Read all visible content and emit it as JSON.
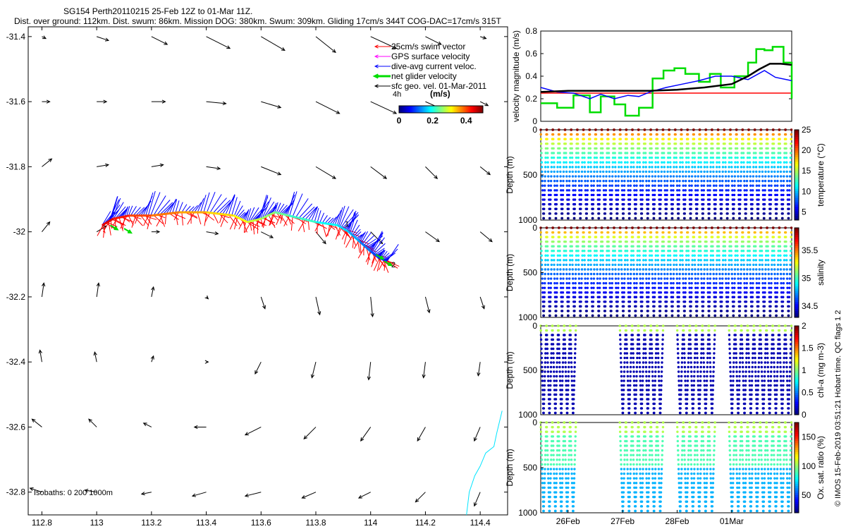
{
  "title": {
    "line1": "SG154 Perth20110215 25-Feb 12Z to 01-Mar 11Z.",
    "line2": "Dist. over ground: 112km. Dist. swum: 86km. Mission DOG: 380km. Swum: 309km. Gliding 17cm/s 344T COG-DAC=17cm/s 315T"
  },
  "credit": "© IMOS 15-Feb-2019 03:51:21 Hobart time. QC flags 1  2",
  "colors": {
    "swim": "#ff0000",
    "gps": "#ff00ff",
    "dac": "#0000ff",
    "net": "#00dd00",
    "sfc": "#000000",
    "coast": "#00e5ff",
    "cumulative": "#000000"
  },
  "chart_data": [
    {
      "type": "scatter",
      "name": "track-map",
      "xlim": [
        112.75,
        114.5
      ],
      "ylim": [
        -32.87,
        -31.37
      ],
      "x_ticks": [
        112.8,
        113,
        113.2,
        113.4,
        113.6,
        113.8,
        114,
        114.2,
        114.4
      ],
      "x_tick_labels": [
        "112.8",
        "113",
        "113.2",
        "113.4",
        "113.6",
        "113.8",
        "114",
        "114.2",
        "114.4"
      ],
      "y_ticks": [
        -31.4,
        -31.6,
        -31.8,
        -32,
        -32.2,
        -32.4,
        -32.6,
        -32.8
      ],
      "y_tick_labels": [
        "-31.4",
        "-31.6",
        "-31.8",
        "-32",
        "-32.2",
        "-32.4",
        "-32.6",
        "-32.8"
      ],
      "legend": {
        "entries": [
          {
            "label": "25cm/s swim vector",
            "color": "#ff0000"
          },
          {
            "label": "GPS surface velocity",
            "color": "#ff00ff"
          },
          {
            "label": "dive-avg current veloc.",
            "color": "#0000ff"
          },
          {
            "label": "net glider velocity",
            "color": "#00dd00"
          },
          {
            "label": "sfc geo. vel. 01-Mar-2011",
            "color": "#000000"
          }
        ],
        "colorbar_caption": "4h",
        "colorbar_units": "(m/s)",
        "colorbar_ticks": [
          "0",
          "0.2",
          "0.4"
        ],
        "colorbar_range": [
          0,
          0.5
        ]
      },
      "isobaths_label": "Isobaths: 0   200  1000m",
      "track": {
        "lon": [
          113.02,
          113.06,
          113.12,
          113.2,
          113.3,
          113.4,
          113.5,
          113.55,
          113.6,
          113.65,
          113.7,
          113.8,
          113.88,
          113.92,
          113.96,
          114.0,
          114.03,
          114.06
        ],
        "lat": [
          -31.98,
          -31.96,
          -31.95,
          -31.95,
          -31.94,
          -31.94,
          -31.95,
          -31.97,
          -31.96,
          -31.94,
          -31.95,
          -31.97,
          -31.98,
          -32.0,
          -32.03,
          -32.06,
          -32.08,
          -32.09
        ]
      },
      "track_point_labels": [
        {
          "text": "1",
          "lon": 113.89,
          "lat": -31.975
        },
        {
          "text": "2",
          "lon": 114.06,
          "lat": -32.1
        }
      ],
      "current_field": {
        "lon": [
          112.8,
          113.0,
          113.2,
          113.4,
          113.6,
          113.8,
          114.0,
          114.2,
          114.4
        ],
        "lat": [
          -31.4,
          -31.6,
          -31.8,
          -32.0,
          -32.2,
          -32.4,
          -32.6,
          -32.8
        ],
        "u": [
          [
            0.02,
            0.06,
            0.08,
            0.12,
            0.12,
            0.1,
            0.13,
            0.08,
            0.03
          ],
          [
            0.04,
            0.05,
            0.07,
            0.1,
            0.1,
            0.12,
            0.13,
            0.09,
            0.04
          ],
          [
            0.05,
            0.06,
            0.06,
            0.07,
            0.1,
            0.1,
            0.08,
            0.06,
            0.05
          ],
          [
            0.04,
            0.05,
            0.04,
            0.06,
            0.06,
            0.05,
            0.06,
            0.07,
            0.06
          ],
          [
            0.01,
            0.01,
            0.01,
            0.01,
            0.02,
            0.02,
            0.01,
            0.02,
            0.02
          ],
          [
            -0.01,
            -0.01,
            0.01,
            0.01,
            -0.03,
            -0.02,
            -0.01,
            -0.01,
            -0.01
          ],
          [
            -0.05,
            -0.04,
            -0.04,
            -0.06,
            -0.08,
            -0.06,
            -0.05,
            -0.04,
            -0.03
          ],
          [
            -0.06,
            -0.06,
            -0.05,
            -0.07,
            -0.08,
            -0.07,
            -0.06,
            -0.05,
            -0.03
          ]
        ],
        "v": [
          [
            -0.01,
            -0.02,
            -0.04,
            -0.06,
            -0.07,
            -0.08,
            -0.06,
            -0.04,
            -0.01
          ],
          [
            0.0,
            0.0,
            0.0,
            -0.01,
            -0.03,
            -0.06,
            -0.06,
            -0.04,
            -0.02
          ],
          [
            0.04,
            0.01,
            0.01,
            -0.01,
            -0.04,
            -0.06,
            -0.06,
            -0.06,
            -0.04
          ],
          [
            0.05,
            0.03,
            0.0,
            -0.01,
            -0.03,
            -0.06,
            -0.06,
            -0.05,
            -0.05
          ],
          [
            0.07,
            0.07,
            0.05,
            -0.01,
            -0.06,
            -0.09,
            -0.1,
            -0.08,
            -0.06
          ],
          [
            0.06,
            0.05,
            0.03,
            0.0,
            -0.06,
            -0.08,
            -0.09,
            -0.08,
            -0.07
          ],
          [
            0.04,
            0.04,
            0.02,
            0.0,
            -0.04,
            -0.06,
            -0.07,
            -0.07,
            -0.07
          ],
          [
            0.02,
            0.01,
            -0.01,
            -0.02,
            -0.02,
            -0.03,
            -0.03,
            -0.05,
            -0.07
          ]
        ]
      },
      "coastline": {
        "lon": [
          114.48,
          114.46,
          114.45,
          114.42,
          114.4,
          114.38,
          114.36,
          114.35
        ],
        "lat": [
          -32.55,
          -32.62,
          -32.66,
          -32.68,
          -32.72,
          -32.75,
          -32.8,
          -32.87
        ]
      }
    },
    {
      "type": "line",
      "name": "velocity-magnitude",
      "ylabel": "velocity magnitude (m/s)",
      "xlim": [
        0,
        4.6
      ],
      "ylim": [
        0,
        0.8
      ],
      "y_ticks": [
        0,
        0.2,
        0.4,
        0.6,
        0.8
      ],
      "y_tick_labels": [
        "0",
        "0.2",
        "0.4",
        "0.6",
        "0.8"
      ],
      "series": [
        {
          "color": "#ff0000",
          "x": [
            0,
            4.6
          ],
          "y": [
            0.25,
            0.25
          ]
        },
        {
          "color": "#00dd00",
          "x": [
            0.0,
            0.3,
            0.6,
            0.9,
            1.1,
            1.35,
            1.55,
            1.8,
            2.05,
            2.25,
            2.45,
            2.65,
            2.9,
            3.1,
            3.3,
            3.55,
            3.8,
            3.95,
            4.1,
            4.25,
            4.45,
            4.6
          ],
          "y": [
            0.16,
            0.12,
            0.23,
            0.08,
            0.22,
            0.15,
            0.05,
            0.12,
            0.38,
            0.45,
            0.47,
            0.42,
            0.35,
            0.42,
            0.3,
            0.4,
            0.52,
            0.64,
            0.63,
            0.66,
            0.52,
            0.2
          ]
        },
        {
          "color": "#0000ff",
          "x": [
            0.0,
            0.3,
            0.6,
            0.9,
            1.1,
            1.35,
            1.6,
            1.8,
            2.0,
            2.3,
            2.6,
            2.9,
            3.2,
            3.5,
            3.8,
            4.1,
            4.3,
            4.6
          ],
          "y": [
            0.3,
            0.26,
            0.25,
            0.2,
            0.24,
            0.2,
            0.23,
            0.22,
            0.26,
            0.3,
            0.33,
            0.36,
            0.4,
            0.4,
            0.37,
            0.45,
            0.39,
            0.36
          ]
        },
        {
          "color": "#000000",
          "x": [
            0.0,
            0.5,
            1.0,
            1.5,
            2.0,
            2.5,
            3.0,
            3.5,
            3.8,
            4.0,
            4.2,
            4.4,
            4.6
          ],
          "y": [
            0.26,
            0.27,
            0.27,
            0.27,
            0.27,
            0.28,
            0.3,
            0.33,
            0.4,
            0.46,
            0.51,
            0.51,
            0.5
          ]
        }
      ]
    },
    {
      "type": "scatter",
      "name": "depth-profiles",
      "x_ticks": [
        0.5,
        1.5,
        2.5,
        3.5
      ],
      "x_tick_labels": [
        "26Feb",
        "27Feb",
        "28Feb",
        "01Mar"
      ],
      "xlim": [
        0,
        4.6
      ],
      "panels": [
        {
          "id": "temperature",
          "ylabel": "Depth (m)",
          "ylim": [
            1000,
            0
          ],
          "y_ticks": [
            0,
            500,
            1000
          ],
          "y_tick_labels": [
            "0",
            "500",
            "1000"
          ],
          "cbar_label": "temperature (°C)",
          "cbar_ticks": [
            5,
            10,
            15,
            20,
            25
          ],
          "cbar_range": [
            3,
            25
          ],
          "dives": [
            [
              0.0,
              4.6,
              2
            ]
          ]
        },
        {
          "id": "salinity",
          "ylabel": "Depth (m)",
          "ylim": [
            1000,
            0
          ],
          "y_ticks": [
            0,
            500,
            1000
          ],
          "y_tick_labels": [
            "0",
            "500",
            "1000"
          ],
          "cbar_label": "salinity",
          "cbar_ticks": [
            34.5,
            35,
            35.5
          ],
          "cbar_ticks_labels": [
            "34.5",
            "35",
            "35.5"
          ],
          "cbar_range": [
            34.3,
            35.9
          ],
          "dives": [
            [
              0.0,
              4.6,
              2
            ]
          ]
        },
        {
          "id": "chl",
          "ylabel": "Depth (m)",
          "ylim": [
            1000,
            0
          ],
          "y_ticks": [
            0,
            500,
            1000
          ],
          "y_tick_labels": [
            "0",
            "500",
            "1000"
          ],
          "cbar_label": "chl-a (mg m-3)",
          "cbar_ticks": [
            0,
            0.5,
            1,
            1.5,
            2
          ],
          "cbar_ticks_labels": [
            "0",
            "0.5",
            "1",
            "1.5",
            "2"
          ],
          "cbar_range": [
            0,
            2
          ],
          "dives": [
            [
              0.0,
              0.65,
              2
            ],
            [
              1.45,
              2.25,
              2
            ],
            [
              2.5,
              3.2,
              2
            ],
            [
              3.45,
              4.6,
              2
            ]
          ]
        },
        {
          "id": "oxygen",
          "ylabel": "Depth (m)",
          "ylim": [
            1000,
            0
          ],
          "y_ticks": [
            0,
            500,
            1000
          ],
          "y_tick_labels": [
            "0",
            "500",
            "1000"
          ],
          "cbar_label": "Ox. sat. ratio (%)",
          "cbar_ticks": [
            50,
            100,
            150
          ],
          "cbar_ticks_labels": [
            "50",
            "100",
            "150"
          ],
          "cbar_range": [
            20,
            175
          ],
          "dives": [
            [
              0.0,
              0.65,
              2
            ],
            [
              1.45,
              2.25,
              2
            ],
            [
              2.5,
              3.2,
              2
            ],
            [
              3.45,
              4.6,
              2
            ]
          ]
        }
      ]
    }
  ]
}
